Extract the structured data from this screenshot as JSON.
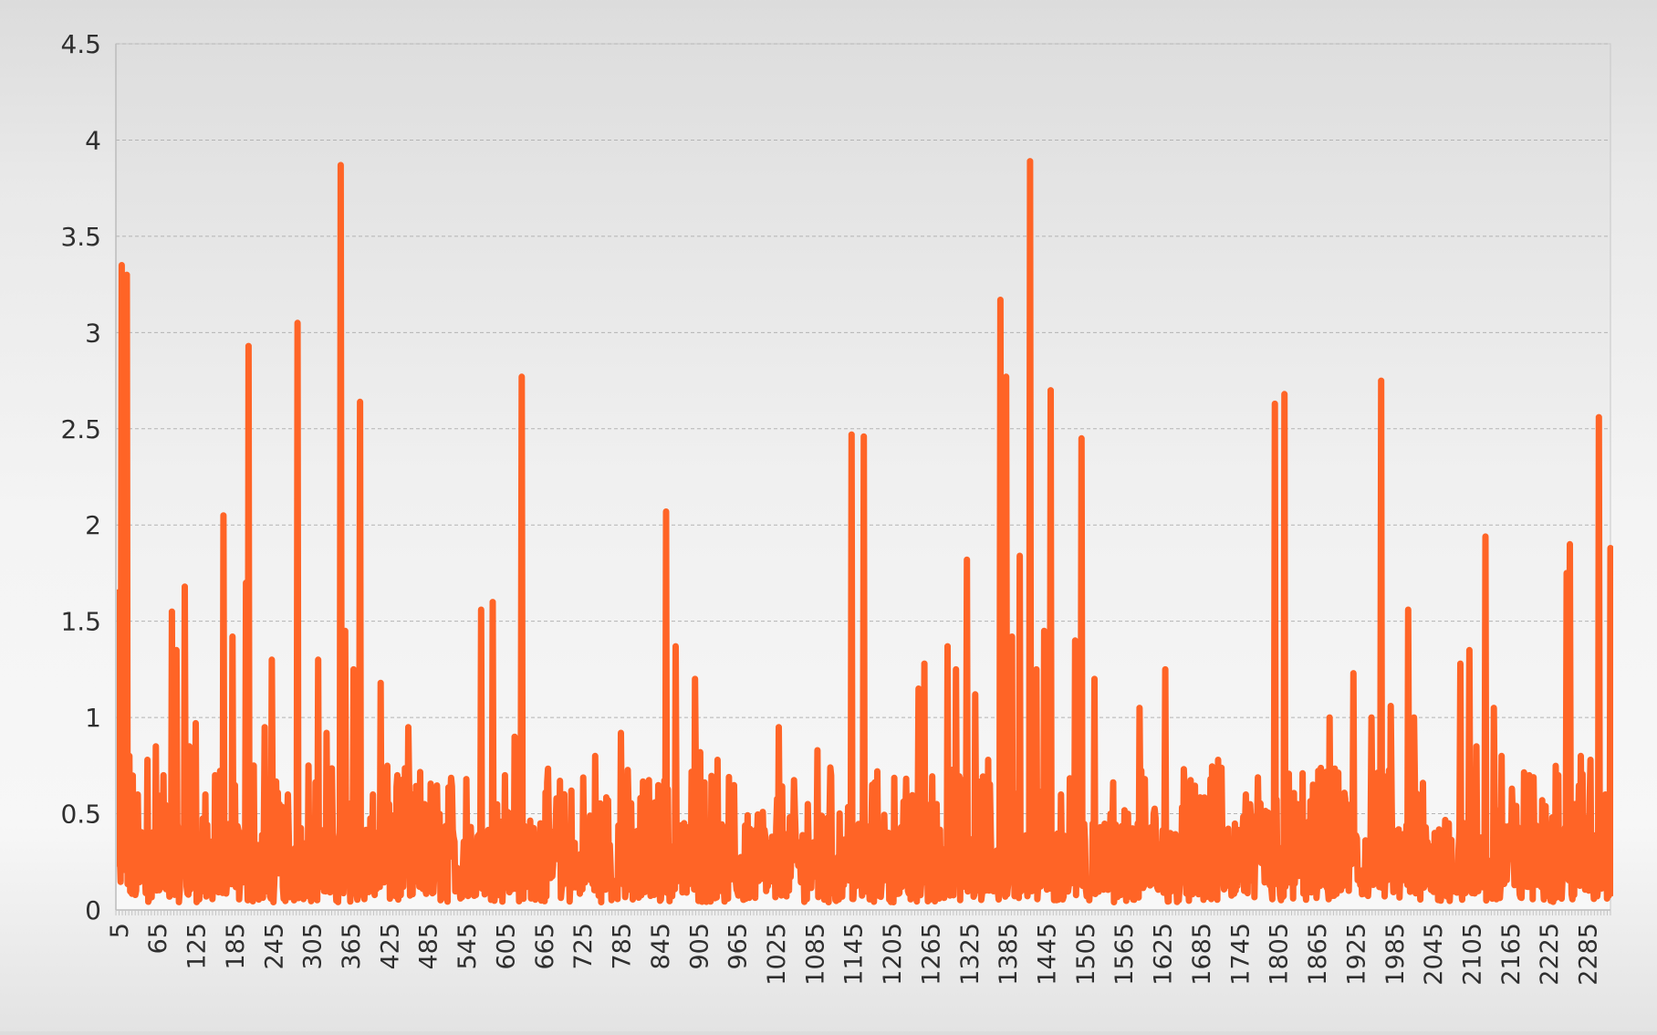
{
  "chart_data": {
    "type": "line",
    "title": "",
    "xlabel": "",
    "ylabel": "",
    "x_range": [
      1,
      2321
    ],
    "ylim": [
      0,
      4.5
    ],
    "y_ticks": [
      "0",
      "0.5",
      "1",
      "1.5",
      "2",
      "2.5",
      "3",
      "3.5",
      "4",
      "4.5"
    ],
    "x_ticks": [
      "5",
      "65",
      "125",
      "185",
      "245",
      "305",
      "365",
      "425",
      "485",
      "545",
      "605",
      "665",
      "725",
      "785",
      "845",
      "905",
      "965",
      "1025",
      "1085",
      "1145",
      "1205",
      "1265",
      "1325",
      "1385",
      "1445",
      "1505",
      "1565",
      "1625",
      "1685",
      "1745",
      "1805",
      "1865",
      "1925",
      "1985",
      "2045",
      "2105",
      "2165",
      "2225",
      "2285"
    ],
    "grid": true,
    "legend": "none",
    "colors": {
      "series": "#ff6426",
      "grid": "#b4b4b4",
      "axis": "#bcbcbc"
    },
    "series": [
      {
        "peaks": [
          [
            1,
            0.55
          ],
          [
            5,
            1.65
          ],
          [
            10,
            3.35
          ],
          [
            14,
            0.25
          ],
          [
            18,
            3.3
          ],
          [
            22,
            0.8
          ],
          [
            35,
            0.6
          ],
          [
            50,
            0.78
          ],
          [
            63,
            0.85
          ],
          [
            75,
            0.7
          ],
          [
            88,
            1.55
          ],
          [
            95,
            1.35
          ],
          [
            108,
            1.68
          ],
          [
            115,
            0.85
          ],
          [
            125,
            0.97
          ],
          [
            140,
            0.6
          ],
          [
            155,
            0.7
          ],
          [
            168,
            2.05
          ],
          [
            182,
            1.42
          ],
          [
            195,
            0.4
          ],
          [
            203,
            1.7
          ],
          [
            207,
            2.93
          ],
          [
            215,
            0.75
          ],
          [
            232,
            0.95
          ],
          [
            243,
            1.3
          ],
          [
            255,
            0.55
          ],
          [
            268,
            0.6
          ],
          [
            283,
            3.05
          ],
          [
            300,
            0.75
          ],
          [
            315,
            1.3
          ],
          [
            328,
            0.92
          ],
          [
            350,
            3.87
          ],
          [
            357,
            1.45
          ],
          [
            370,
            1.25
          ],
          [
            380,
            2.64
          ],
          [
            400,
            0.6
          ],
          [
            412,
            1.18
          ],
          [
            425,
            0.55
          ],
          [
            438,
            0.7
          ],
          [
            455,
            0.95
          ],
          [
            480,
            0.55
          ],
          [
            498,
            0.56
          ],
          [
            520,
            0.58
          ],
          [
            545,
            0.68
          ],
          [
            568,
            1.56
          ],
          [
            586,
            1.6
          ],
          [
            605,
            0.7
          ],
          [
            620,
            0.9
          ],
          [
            631,
            2.77
          ],
          [
            660,
            0.45
          ],
          [
            685,
            0.58
          ],
          [
            708,
            0.62
          ],
          [
            745,
            0.8
          ],
          [
            765,
            0.57
          ],
          [
            785,
            0.92
          ],
          [
            835,
            0.4
          ],
          [
            855,
            2.07
          ],
          [
            870,
            1.37
          ],
          [
            900,
            1.2
          ],
          [
            908,
            0.82
          ],
          [
            935,
            0.78
          ],
          [
            958,
            0.55
          ],
          [
            1000,
            0.45
          ],
          [
            1030,
            0.95
          ],
          [
            1055,
            0.5
          ],
          [
            1075,
            0.55
          ],
          [
            1090,
            0.83
          ],
          [
            1110,
            0.74
          ],
          [
            1135,
            0.37
          ],
          [
            1143,
            2.47
          ],
          [
            1162,
            2.46
          ],
          [
            1175,
            0.65
          ],
          [
            1195,
            0.3
          ],
          [
            1225,
            0.45
          ],
          [
            1247,
            1.15
          ],
          [
            1256,
            1.28
          ],
          [
            1275,
            0.55
          ],
          [
            1292,
            1.37
          ],
          [
            1305,
            1.25
          ],
          [
            1322,
            1.82
          ],
          [
            1335,
            1.12
          ],
          [
            1355,
            0.78
          ],
          [
            1374,
            3.17
          ],
          [
            1383,
            2.77
          ],
          [
            1392,
            1.42
          ],
          [
            1404,
            1.84
          ],
          [
            1420,
            3.89
          ],
          [
            1430,
            1.25
          ],
          [
            1442,
            1.45
          ],
          [
            1452,
            2.7
          ],
          [
            1468,
            0.6
          ],
          [
            1490,
            1.4
          ],
          [
            1500,
            2.45
          ],
          [
            1520,
            1.2
          ],
          [
            1545,
            0.5
          ],
          [
            1572,
            0.5
          ],
          [
            1590,
            1.05
          ],
          [
            1612,
            0.5
          ],
          [
            1630,
            1.25
          ],
          [
            1660,
            0.62
          ],
          [
            1700,
            0.68
          ],
          [
            1712,
            0.78
          ],
          [
            1755,
            0.6
          ],
          [
            1775,
            0.42
          ],
          [
            1800,
            2.63
          ],
          [
            1815,
            2.68
          ],
          [
            1835,
            0.55
          ],
          [
            1862,
            0.45
          ],
          [
            1885,
            1.0
          ],
          [
            1912,
            0.55
          ],
          [
            1922,
            1.23
          ],
          [
            1950,
            1.0
          ],
          [
            1965,
            2.75
          ],
          [
            1980,
            1.06
          ],
          [
            2007,
            1.56
          ],
          [
            2016,
            1.0
          ],
          [
            2030,
            0.66
          ],
          [
            2048,
            0.4
          ],
          [
            2070,
            0.45
          ],
          [
            2088,
            1.28
          ],
          [
            2102,
            1.35
          ],
          [
            2113,
            0.85
          ],
          [
            2127,
            1.94
          ],
          [
            2140,
            1.05
          ],
          [
            2152,
            0.8
          ],
          [
            2168,
            0.63
          ],
          [
            2195,
            0.7
          ],
          [
            2215,
            0.57
          ],
          [
            2240,
            0.7
          ],
          [
            2253,
            1.75
          ],
          [
            2258,
            1.9
          ],
          [
            2266,
            0.55
          ],
          [
            2275,
            0.8
          ],
          [
            2290,
            0.78
          ],
          [
            2303,
            2.56
          ],
          [
            2313,
            0.6
          ],
          [
            2321,
            1.88
          ],
          [
            2325,
            0.5
          ]
        ]
      }
    ]
  }
}
